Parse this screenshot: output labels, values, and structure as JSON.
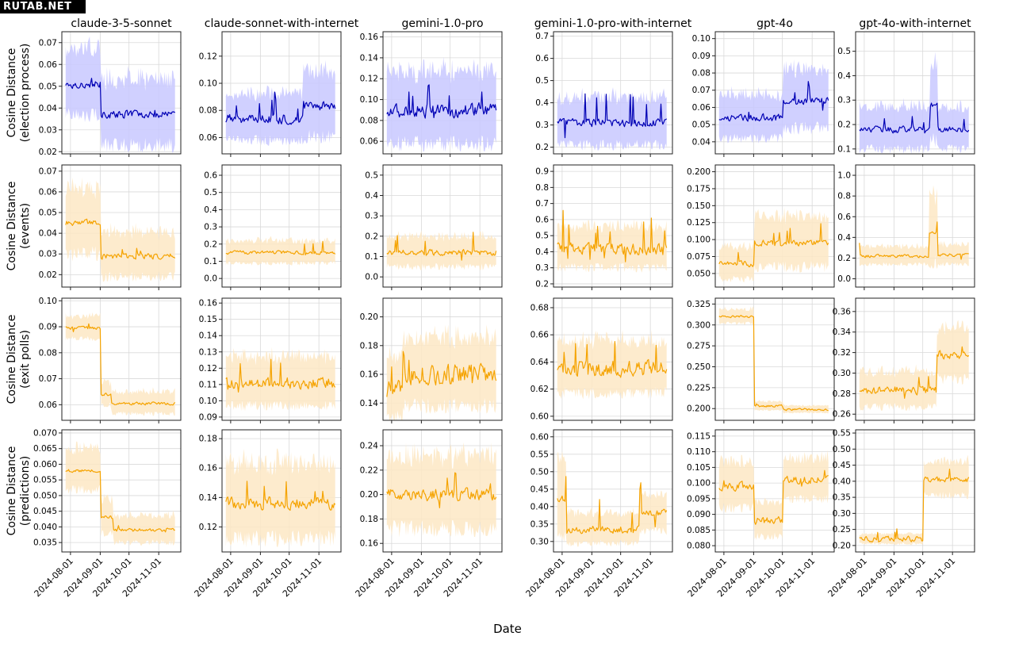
{
  "watermark": "RUTAB.NET",
  "figure": {
    "xlabel": "Date",
    "models": [
      "claude-3-5-sonnet",
      "claude-sonnet-with-internet",
      "gemini-1.0-pro",
      "gemini-1.0-pro-with-internet",
      "gpt-4o",
      "gpt-4o-with-internet"
    ],
    "rows": [
      {
        "ylabel_lines": [
          "Cosine Distance",
          "(election process)"
        ],
        "color": "#0000b4",
        "band_color": "#c8c8ff"
      },
      {
        "ylabel_lines": [
          "Cosine Distance",
          "(events)"
        ],
        "color": "#f5a300",
        "band_color": "#fde8c4"
      },
      {
        "ylabel_lines": [
          "Cosine Distance",
          "(exit polls)"
        ],
        "color": "#f5a300",
        "band_color": "#fde8c4"
      },
      {
        "ylabel_lines": [
          "Cosine Distance",
          "(predictions)"
        ],
        "color": "#f5a300",
        "band_color": "#fde8c4"
      }
    ],
    "x_ticks": [
      "2024-08-01",
      "2024-09-01",
      "2024-10-01",
      "2024-11-01"
    ],
    "x_range": [
      "2024-07-23",
      "2024-11-24"
    ],
    "data_range": [
      "2024-07-27",
      "2024-11-18"
    ],
    "grid": true
  },
  "chart_data": [
    {
      "type": "line",
      "row": "election process",
      "model": "claude-3-5-sonnet",
      "ylim": [
        0.019,
        0.075
      ],
      "yticks": [
        0.02,
        0.03,
        0.04,
        0.05,
        0.06,
        0.07
      ],
      "yfmt": 2,
      "segments": [
        {
          "from": "2024-07-27",
          "to": "2024-09-01",
          "mean": 0.051,
          "band": 0.014
        },
        {
          "from": "2024-09-02",
          "to": "2024-11-18",
          "mean": 0.037,
          "band": 0.014
        }
      ],
      "noise": 0.0025,
      "jumps": 3,
      "jump_size": 0.003
    },
    {
      "type": "line",
      "row": "election process",
      "model": "claude-sonnet-with-internet",
      "ylim": [
        0.048,
        0.138
      ],
      "yticks": [
        0.06,
        0.08,
        0.1,
        0.12
      ],
      "yfmt": 2,
      "segments": [
        {
          "from": "2024-07-27",
          "to": "2024-10-15",
          "mean": 0.074,
          "band": 0.016
        },
        {
          "from": "2024-10-16",
          "to": "2024-11-18",
          "mean": 0.083,
          "band": 0.022
        }
      ],
      "noise": 0.005,
      "jumps": 6,
      "jump_size": 0.015
    },
    {
      "type": "line",
      "row": "election process",
      "model": "gemini-1.0-pro",
      "ylim": [
        0.048,
        0.165
      ],
      "yticks": [
        0.06,
        0.08,
        0.1,
        0.12,
        0.14,
        0.16
      ],
      "yfmt": 2,
      "segments": [
        {
          "from": "2024-07-27",
          "to": "2024-11-18",
          "mean": 0.09,
          "band": 0.032
        }
      ],
      "noise": 0.01,
      "jumps": 8,
      "jump_size": 0.018
    },
    {
      "type": "line",
      "row": "election process",
      "model": "gemini-1.0-pro-with-internet",
      "ylim": [
        0.17,
        0.72
      ],
      "yticks": [
        0.2,
        0.3,
        0.4,
        0.5,
        0.6,
        0.7
      ],
      "yfmt": 1,
      "segments": [
        {
          "from": "2024-07-27",
          "to": "2024-11-18",
          "mean": 0.31,
          "band": 0.1
        }
      ],
      "noise": 0.025,
      "jumps": 10,
      "jump_size": 0.12
    },
    {
      "type": "line",
      "row": "election process",
      "model": "gpt-4o",
      "ylim": [
        0.033,
        0.104
      ],
      "yticks": [
        0.04,
        0.05,
        0.06,
        0.07,
        0.08,
        0.09,
        0.1
      ],
      "yfmt": 2,
      "segments": [
        {
          "from": "2024-07-27",
          "to": "2024-10-01",
          "mean": 0.054,
          "band": 0.012
        },
        {
          "from": "2024-10-02",
          "to": "2024-11-18",
          "mean": 0.064,
          "band": 0.016
        }
      ],
      "noise": 0.003,
      "jumps": 6,
      "jump_size": 0.008
    },
    {
      "type": "line",
      "row": "election process",
      "model": "gpt-4o-with-internet",
      "ylim": [
        0.08,
        0.58
      ],
      "yticks": [
        0.1,
        0.2,
        0.3,
        0.4,
        0.5
      ],
      "yfmt": 1,
      "segments": [
        {
          "from": "2024-07-27",
          "to": "2024-10-08",
          "mean": 0.18,
          "band": 0.08
        },
        {
          "from": "2024-10-09",
          "to": "2024-10-16",
          "mean": 0.28,
          "band": 0.14
        },
        {
          "from": "2024-10-17",
          "to": "2024-11-18",
          "mean": 0.18,
          "band": 0.08
        }
      ],
      "noise": 0.02,
      "jumps": 4,
      "jump_size": 0.04
    },
    {
      "type": "line",
      "row": "events",
      "model": "claude-3-5-sonnet",
      "ylim": [
        0.014,
        0.073
      ],
      "yticks": [
        0.02,
        0.03,
        0.04,
        0.05,
        0.06,
        0.07
      ],
      "yfmt": 2,
      "segments": [
        {
          "from": "2024-07-27",
          "to": "2024-09-01",
          "mean": 0.045,
          "band": 0.015
        },
        {
          "from": "2024-09-02",
          "to": "2024-11-18",
          "mean": 0.029,
          "band": 0.01
        }
      ],
      "noise": 0.002,
      "jumps": 3,
      "jump_size": 0.004
    },
    {
      "type": "line",
      "row": "events",
      "model": "claude-sonnet-with-internet",
      "ylim": [
        -0.05,
        0.66
      ],
      "yticks": [
        0.0,
        0.1,
        0.2,
        0.3,
        0.4,
        0.5,
        0.6
      ],
      "yfmt": 1,
      "segments": [
        {
          "from": "2024-07-27",
          "to": "2024-11-18",
          "mean": 0.15,
          "band": 0.06
        }
      ],
      "noise": 0.015,
      "jumps": 3,
      "jump_size": 0.07
    },
    {
      "type": "line",
      "row": "events",
      "model": "gemini-1.0-pro",
      "ylim": [
        -0.05,
        0.55
      ],
      "yticks": [
        0.0,
        0.1,
        0.2,
        0.3,
        0.4,
        0.5
      ],
      "yfmt": 1,
      "segments": [
        {
          "from": "2024-07-27",
          "to": "2024-11-18",
          "mean": 0.12,
          "band": 0.07
        }
      ],
      "noise": 0.02,
      "jumps": 5,
      "jump_size": 0.08
    },
    {
      "type": "line",
      "row": "events",
      "model": "gemini-1.0-pro-with-internet",
      "ylim": [
        0.18,
        0.94
      ],
      "yticks": [
        0.2,
        0.3,
        0.4,
        0.5,
        0.6,
        0.7,
        0.8,
        0.9
      ],
      "yfmt": 1,
      "segments": [
        {
          "from": "2024-07-27",
          "to": "2024-11-18",
          "mean": 0.42,
          "band": 0.12
        }
      ],
      "noise": 0.05,
      "jumps": 14,
      "jump_size": 0.18
    },
    {
      "type": "line",
      "row": "events",
      "model": "gpt-4o",
      "ylim": [
        0.03,
        0.21
      ],
      "yticks": [
        0.05,
        0.075,
        0.1,
        0.125,
        0.15,
        0.175,
        0.2
      ],
      "yfmt": 3,
      "segments": [
        {
          "from": "2024-07-27",
          "to": "2024-09-01",
          "mean": 0.064,
          "band": 0.022
        },
        {
          "from": "2024-09-02",
          "to": "2024-11-18",
          "mean": 0.095,
          "band": 0.035
        }
      ],
      "noise": 0.006,
      "jumps": 6,
      "jump_size": 0.025
    },
    {
      "type": "line",
      "row": "events",
      "model": "gpt-4o-with-internet",
      "ylim": [
        -0.08,
        1.1
      ],
      "yticks": [
        0.0,
        0.2,
        0.4,
        0.6,
        0.8,
        1.0
      ],
      "yfmt": 1,
      "segments": [
        {
          "from": "2024-07-27",
          "to": "2024-10-07",
          "mean": 0.22,
          "band": 0.08
        },
        {
          "from": "2024-10-08",
          "to": "2024-10-16",
          "mean": 0.45,
          "band": 0.3
        },
        {
          "from": "2024-10-17",
          "to": "2024-11-18",
          "mean": 0.23,
          "band": 0.09
        }
      ],
      "noise": 0.02,
      "jumps": 3,
      "jump_size": 0.12
    },
    {
      "type": "line",
      "row": "exit polls",
      "model": "claude-3-5-sonnet",
      "ylim": [
        0.054,
        0.101
      ],
      "yticks": [
        0.06,
        0.07,
        0.08,
        0.09,
        0.1
      ],
      "yfmt": 2,
      "segments": [
        {
          "from": "2024-07-27",
          "to": "2024-09-01",
          "mean": 0.0895,
          "band": 0.004
        },
        {
          "from": "2024-09-02",
          "to": "2024-09-12",
          "mean": 0.064,
          "band": 0.004
        },
        {
          "from": "2024-09-13",
          "to": "2024-11-18",
          "mean": 0.0605,
          "band": 0.004
        }
      ],
      "noise": 0.0008,
      "jumps": 2,
      "jump_size": 0.002
    },
    {
      "type": "line",
      "row": "exit polls",
      "model": "claude-sonnet-with-internet",
      "ylim": [
        0.088,
        0.163
      ],
      "yticks": [
        0.09,
        0.1,
        0.11,
        0.12,
        0.13,
        0.14,
        0.15,
        0.16
      ],
      "yfmt": 2,
      "segments": [
        {
          "from": "2024-07-27",
          "to": "2024-11-18",
          "mean": 0.111,
          "band": 0.014
        }
      ],
      "noise": 0.005,
      "jumps": 5,
      "jump_size": 0.012
    },
    {
      "type": "line",
      "row": "exit polls",
      "model": "gemini-1.0-pro",
      "ylim": [
        0.128,
        0.213
      ],
      "yticks": [
        0.14,
        0.16,
        0.18,
        0.2
      ],
      "yfmt": 2,
      "segments": [
        {
          "from": "2024-07-27",
          "to": "2024-08-12",
          "mean": 0.15,
          "band": 0.02
        },
        {
          "from": "2024-08-13",
          "to": "2024-11-18",
          "mean": 0.16,
          "band": 0.022
        }
      ],
      "noise": 0.01,
      "jumps": 6,
      "jump_size": 0.014
    },
    {
      "type": "line",
      "row": "exit polls",
      "model": "gemini-1.0-pro-with-internet",
      "ylim": [
        0.597,
        0.687
      ],
      "yticks": [
        0.6,
        0.62,
        0.64,
        0.66,
        0.68
      ],
      "yfmt": 2,
      "segments": [
        {
          "from": "2024-07-27",
          "to": "2024-11-18",
          "mean": 0.635,
          "band": 0.018
        }
      ],
      "noise": 0.008,
      "jumps": 6,
      "jump_size": 0.018
    },
    {
      "type": "line",
      "row": "exit polls",
      "model": "gpt-4o",
      "ylim": [
        0.186,
        0.332
      ],
      "yticks": [
        0.2,
        0.225,
        0.25,
        0.275,
        0.3,
        0.325
      ],
      "yfmt": 3,
      "segments": [
        {
          "from": "2024-07-27",
          "to": "2024-09-01",
          "mean": 0.31,
          "band": 0.008
        },
        {
          "from": "2024-09-02",
          "to": "2024-10-01",
          "mean": 0.203,
          "band": 0.005
        },
        {
          "from": "2024-10-02",
          "to": "2024-11-18",
          "mean": 0.199,
          "band": 0.004
        }
      ],
      "noise": 0.002,
      "jumps": 2,
      "jump_size": 0.003
    },
    {
      "type": "line",
      "row": "exit polls",
      "model": "gpt-4o-with-internet",
      "ylim": [
        0.254,
        0.373
      ],
      "yticks": [
        0.26,
        0.28,
        0.3,
        0.32,
        0.34,
        0.36
      ],
      "yfmt": 2,
      "segments": [
        {
          "from": "2024-07-27",
          "to": "2024-10-15",
          "mean": 0.283,
          "band": 0.016
        },
        {
          "from": "2024-10-16",
          "to": "2024-11-18",
          "mean": 0.318,
          "band": 0.024
        }
      ],
      "noise": 0.006,
      "jumps": 4,
      "jump_size": 0.01
    },
    {
      "type": "line",
      "row": "predictions",
      "model": "claude-3-5-sonnet",
      "ylim": [
        0.032,
        0.071
      ],
      "yticks": [
        0.035,
        0.04,
        0.045,
        0.05,
        0.055,
        0.06,
        0.065,
        0.07
      ],
      "yfmt": 3,
      "segments": [
        {
          "from": "2024-07-27",
          "to": "2024-09-01",
          "mean": 0.058,
          "band": 0.006
        },
        {
          "from": "2024-09-02",
          "to": "2024-09-14",
          "mean": 0.043,
          "band": 0.005
        },
        {
          "from": "2024-09-15",
          "to": "2024-11-18",
          "mean": 0.039,
          "band": 0.004
        }
      ],
      "noise": 0.0008,
      "jumps": 2,
      "jump_size": 0.002
    },
    {
      "type": "line",
      "row": "predictions",
      "model": "claude-sonnet-with-internet",
      "ylim": [
        0.103,
        0.186
      ],
      "yticks": [
        0.12,
        0.14,
        0.16,
        0.18
      ],
      "yfmt": 2,
      "segments": [
        {
          "from": "2024-07-27",
          "to": "2024-11-18",
          "mean": 0.136,
          "band": 0.024
        }
      ],
      "noise": 0.006,
      "jumps": 5,
      "jump_size": 0.014
    },
    {
      "type": "line",
      "row": "predictions",
      "model": "gemini-1.0-pro",
      "ylim": [
        0.153,
        0.253
      ],
      "yticks": [
        0.16,
        0.18,
        0.2,
        0.22,
        0.24
      ],
      "yfmt": 2,
      "segments": [
        {
          "from": "2024-07-27",
          "to": "2024-11-18",
          "mean": 0.2,
          "band": 0.028
        }
      ],
      "noise": 0.007,
      "jumps": 5,
      "jump_size": 0.015
    },
    {
      "type": "line",
      "row": "predictions",
      "model": "gemini-1.0-pro-with-internet",
      "ylim": [
        0.27,
        0.62
      ],
      "yticks": [
        0.3,
        0.35,
        0.4,
        0.45,
        0.5,
        0.55,
        0.6
      ],
      "yfmt": 2,
      "segments": [
        {
          "from": "2024-07-27",
          "to": "2024-08-05",
          "mean": 0.42,
          "band": 0.1
        },
        {
          "from": "2024-08-06",
          "to": "2024-10-20",
          "mean": 0.335,
          "band": 0.04
        },
        {
          "from": "2024-10-21",
          "to": "2024-11-18",
          "mean": 0.38,
          "band": 0.05
        }
      ],
      "noise": 0.015,
      "jumps": 6,
      "jump_size": 0.08
    },
    {
      "type": "line",
      "row": "predictions",
      "model": "gpt-4o",
      "ylim": [
        0.078,
        0.117
      ],
      "yticks": [
        0.08,
        0.085,
        0.09,
        0.095,
        0.1,
        0.105,
        0.11,
        0.115
      ],
      "yfmt": 3,
      "segments": [
        {
          "from": "2024-07-27",
          "to": "2024-09-01",
          "mean": 0.099,
          "band": 0.007
        },
        {
          "from": "2024-09-02",
          "to": "2024-10-01",
          "mean": 0.088,
          "band": 0.005
        },
        {
          "from": "2024-10-02",
          "to": "2024-11-18",
          "mean": 0.101,
          "band": 0.006
        }
      ],
      "noise": 0.0018,
      "jumps": 3,
      "jump_size": 0.004
    },
    {
      "type": "line",
      "row": "predictions",
      "model": "gpt-4o-with-internet",
      "ylim": [
        0.18,
        0.56
      ],
      "yticks": [
        0.2,
        0.25,
        0.3,
        0.35,
        0.4,
        0.45,
        0.5,
        0.55
      ],
      "yfmt": 2,
      "segments": [
        {
          "from": "2024-07-27",
          "to": "2024-10-01",
          "mean": 0.22,
          "band": 0.015
        },
        {
          "from": "2024-10-02",
          "to": "2024-11-18",
          "mean": 0.405,
          "band": 0.05
        }
      ],
      "noise": 0.012,
      "jumps": 4,
      "jump_size": 0.03
    }
  ]
}
